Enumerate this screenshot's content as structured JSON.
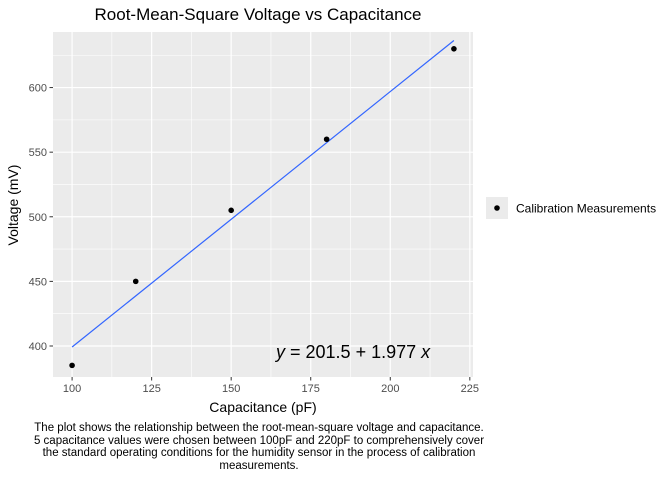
{
  "chart_data": {
    "type": "scatter",
    "title": "Root-Mean-Square Voltage vs Capacitance",
    "xlabel": "Capacitance (pF)",
    "ylabel": "Voltage (mV)",
    "xlim": [
      94,
      226
    ],
    "ylim": [
      376,
      643
    ],
    "x_ticks": [
      100,
      125,
      150,
      175,
      200,
      225
    ],
    "y_ticks": [
      400,
      450,
      500,
      550,
      600
    ],
    "x_tick_labels": [
      "100",
      "125",
      "150",
      "175",
      "200",
      "225"
    ],
    "y_tick_labels": [
      "400",
      "450",
      "500",
      "550",
      "600"
    ],
    "grid": true,
    "legend_position": "right",
    "series": [
      {
        "name": "Calibration Measurements",
        "color": "#000000",
        "x": [
          100,
          120,
          150,
          180,
          220
        ],
        "y": [
          385,
          450,
          505,
          560,
          630
        ]
      }
    ],
    "fit_line": {
      "color": "#3366FF",
      "intercept": 201.5,
      "slope": 1.977,
      "x_range": [
        100,
        220
      ]
    },
    "equation": {
      "y_var": "y",
      "equals": " = ",
      "intercept": "201.5",
      "plus": " + ",
      "slope": "1.977",
      "x_var": "x"
    }
  },
  "caption": "The plot shows the relationship between the root-mean-square voltage and capacitance. 5 capacitance values were chosen between 100pF and 220pF to comprehensively cover the standard operating conditions for the humidity sensor in the process of calibration measurements."
}
